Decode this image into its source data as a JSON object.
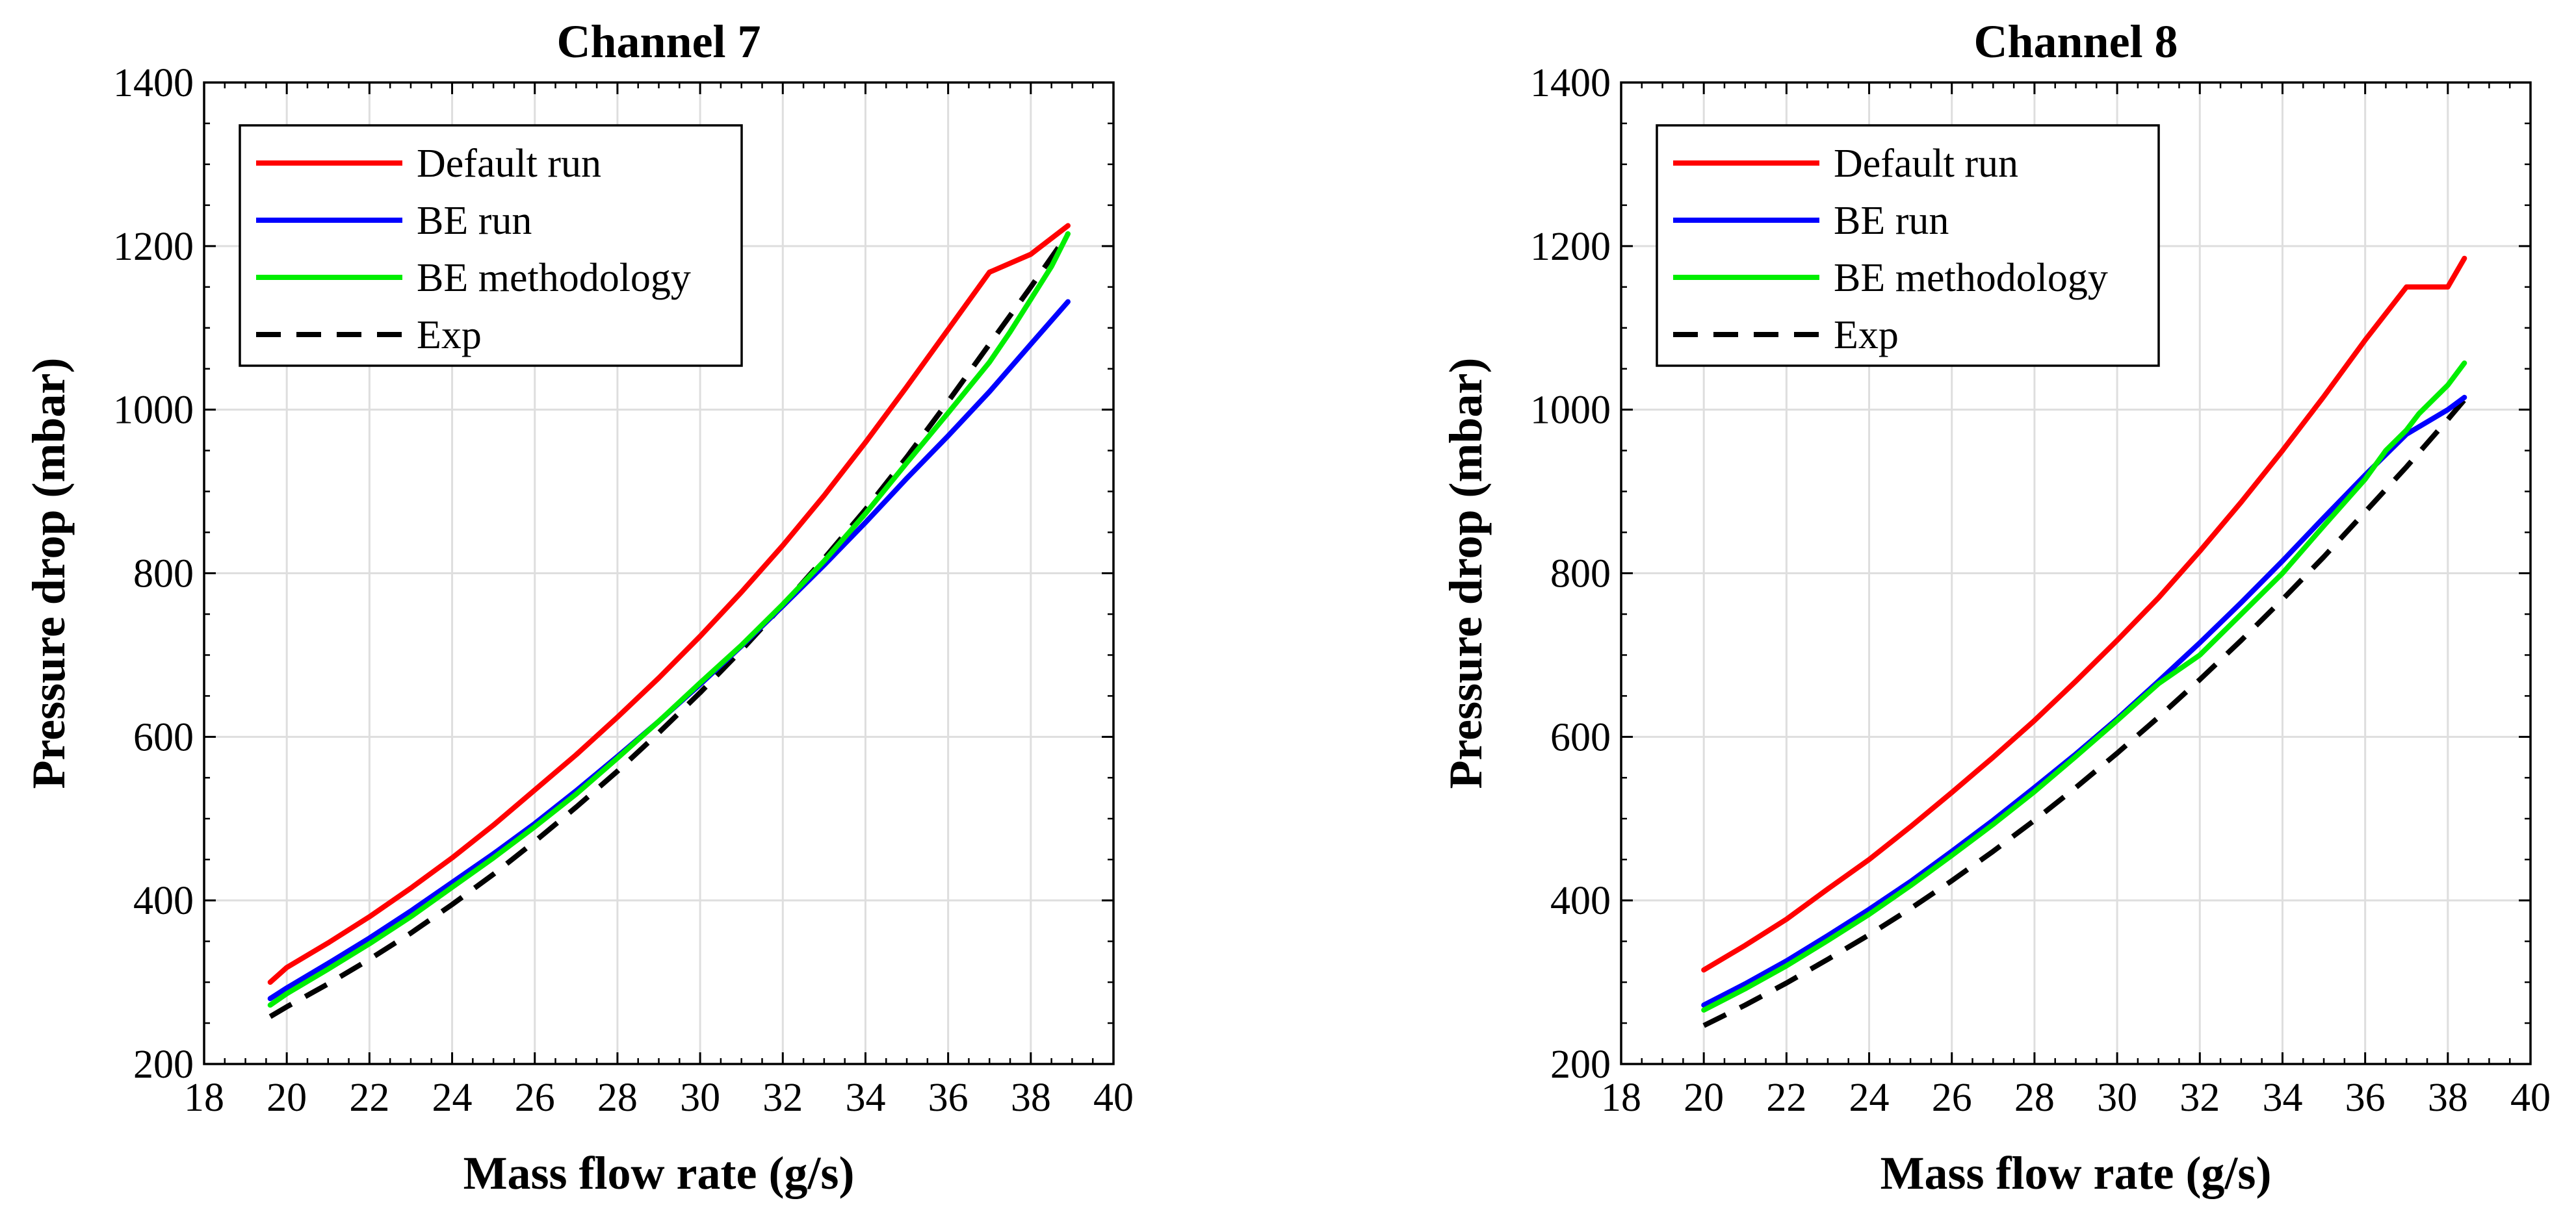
{
  "colors": {
    "default_run": "#ff0000",
    "be_run": "#0000ff",
    "be_methodology": "#00ee00",
    "exp": "#000000",
    "grid": "#dedede",
    "axes": "#000000"
  },
  "chart_data": [
    {
      "type": "line",
      "title": "Channel 7",
      "xlabel": "Mass flow rate (g/s)",
      "ylabel": "Pressure drop (mbar)",
      "xlim": [
        18,
        40
      ],
      "ylim": [
        200,
        1400
      ],
      "xticks": [
        18,
        20,
        22,
        24,
        26,
        28,
        30,
        32,
        34,
        36,
        38,
        40
      ],
      "yticks": [
        200,
        400,
        600,
        800,
        1000,
        1200,
        1400
      ],
      "xtick_labels": [
        "18",
        "20",
        "22",
        "24",
        "26",
        "28",
        "30",
        "32",
        "34",
        "36",
        "38",
        "40"
      ],
      "ytick_labels": [
        "200",
        "400",
        "600",
        "800",
        "1000",
        "1200",
        "1400"
      ],
      "grid": true,
      "legend_position": "top-left",
      "series": [
        {
          "name": "Default run",
          "color_key": "default_run",
          "dash": "solid",
          "x": [
            19.6,
            20,
            21,
            22,
            23,
            24,
            25,
            26,
            27,
            28,
            29,
            30,
            31,
            32,
            33,
            34,
            35,
            36,
            37,
            38,
            38.9
          ],
          "y": [
            300,
            318,
            348,
            380,
            415,
            452,
            492,
            535,
            578,
            624,
            672,
            723,
            777,
            834,
            895,
            960,
            1028,
            1098,
            1168,
            1190,
            1225
          ]
        },
        {
          "name": "BE run",
          "color_key": "be_run",
          "dash": "solid",
          "x": [
            19.6,
            20,
            21,
            22,
            23,
            24,
            25,
            26,
            27,
            28,
            29,
            30,
            31,
            32,
            33,
            34,
            35,
            36,
            37,
            38,
            38.9
          ],
          "y": [
            280,
            293,
            323,
            354,
            387,
            422,
            457,
            494,
            534,
            576,
            619,
            664,
            711,
            760,
            810,
            862,
            916,
            968,
            1022,
            1080,
            1132
          ]
        },
        {
          "name": "BE methodology",
          "color_key": "be_methodology",
          "dash": "solid",
          "x": [
            19.6,
            20,
            21,
            22,
            23,
            24,
            25,
            26,
            27,
            28,
            29,
            30,
            31,
            32,
            33,
            34,
            35,
            36,
            37,
            37.5,
            38,
            38.5,
            38.9
          ],
          "y": [
            272,
            286,
            316,
            347,
            380,
            416,
            452,
            490,
            530,
            574,
            619,
            666,
            712,
            762,
            815,
            873,
            935,
            996,
            1058,
            1095,
            1135,
            1175,
            1215
          ]
        },
        {
          "name": "Exp",
          "color_key": "exp",
          "dash": "dashed",
          "x": [
            19.6,
            20,
            21,
            22,
            23,
            24,
            25,
            26,
            27,
            28,
            29,
            30,
            31,
            32,
            33,
            34,
            35,
            36,
            37,
            38,
            38.9
          ],
          "y": [
            258,
            270,
            298,
            328,
            360,
            395,
            432,
            472,
            514,
            558,
            605,
            654,
            706,
            761,
            818,
            878,
            942,
            1010,
            1080,
            1150,
            1215
          ]
        }
      ]
    },
    {
      "type": "line",
      "title": "Channel 8",
      "xlabel": "Mass flow rate (g/s)",
      "ylabel": "Pressure drop (mbar)",
      "xlim": [
        18,
        40
      ],
      "ylim": [
        200,
        1400
      ],
      "xticks": [
        18,
        20,
        22,
        24,
        26,
        28,
        30,
        32,
        34,
        36,
        38,
        40
      ],
      "yticks": [
        200,
        400,
        600,
        800,
        1000,
        1200,
        1400
      ],
      "xtick_labels": [
        "18",
        "20",
        "22",
        "24",
        "26",
        "28",
        "30",
        "32",
        "34",
        "36",
        "38",
        "40"
      ],
      "ytick_labels": [
        "200",
        "400",
        "600",
        "800",
        "1000",
        "1200",
        "1400"
      ],
      "grid": true,
      "legend_position": "top-left",
      "series": [
        {
          "name": "Default run",
          "color_key": "default_run",
          "dash": "solid",
          "x": [
            20,
            21,
            22,
            23,
            24,
            25,
            26,
            27,
            28,
            29,
            30,
            31,
            32,
            33,
            34,
            35,
            36,
            37,
            38,
            38.4
          ],
          "y": [
            315,
            345,
            377,
            414,
            450,
            490,
            532,
            575,
            620,
            668,
            718,
            770,
            827,
            887,
            950,
            1016,
            1085,
            1150,
            1150,
            1185
          ]
        },
        {
          "name": "BE run",
          "color_key": "be_run",
          "dash": "solid",
          "x": [
            20,
            21,
            22,
            23,
            24,
            25,
            26,
            27,
            28,
            29,
            30,
            31,
            32,
            33,
            34,
            35,
            36,
            37,
            38,
            38.4
          ],
          "y": [
            272,
            298,
            326,
            357,
            389,
            423,
            460,
            498,
            538,
            579,
            622,
            668,
            715,
            764,
            815,
            868,
            920,
            970,
            1000,
            1015
          ]
        },
        {
          "name": "BE methodology",
          "color_key": "be_methodology",
          "dash": "solid",
          "x": [
            20,
            21,
            22,
            23,
            24,
            25,
            26,
            27,
            28,
            29,
            30,
            31,
            32,
            33,
            34,
            35,
            36,
            36.5,
            37,
            37.3,
            37.5,
            38,
            38.4
          ],
          "y": [
            266,
            292,
            320,
            351,
            383,
            418,
            455,
            493,
            533,
            576,
            620,
            665,
            700,
            750,
            800,
            858,
            915,
            950,
            975,
            995,
            1005,
            1030,
            1057
          ]
        },
        {
          "name": "Exp",
          "color_key": "exp",
          "dash": "dashed",
          "x": [
            20,
            21,
            22,
            23,
            24,
            25,
            26,
            27,
            28,
            29,
            30,
            31,
            32,
            33,
            34,
            35,
            36,
            37,
            38,
            38.4
          ],
          "y": [
            247,
            272,
            299,
            328,
            358,
            390,
            424,
            460,
            498,
            538,
            580,
            624,
            670,
            718,
            768,
            820,
            875,
            930,
            988,
            1012
          ]
        }
      ]
    }
  ]
}
